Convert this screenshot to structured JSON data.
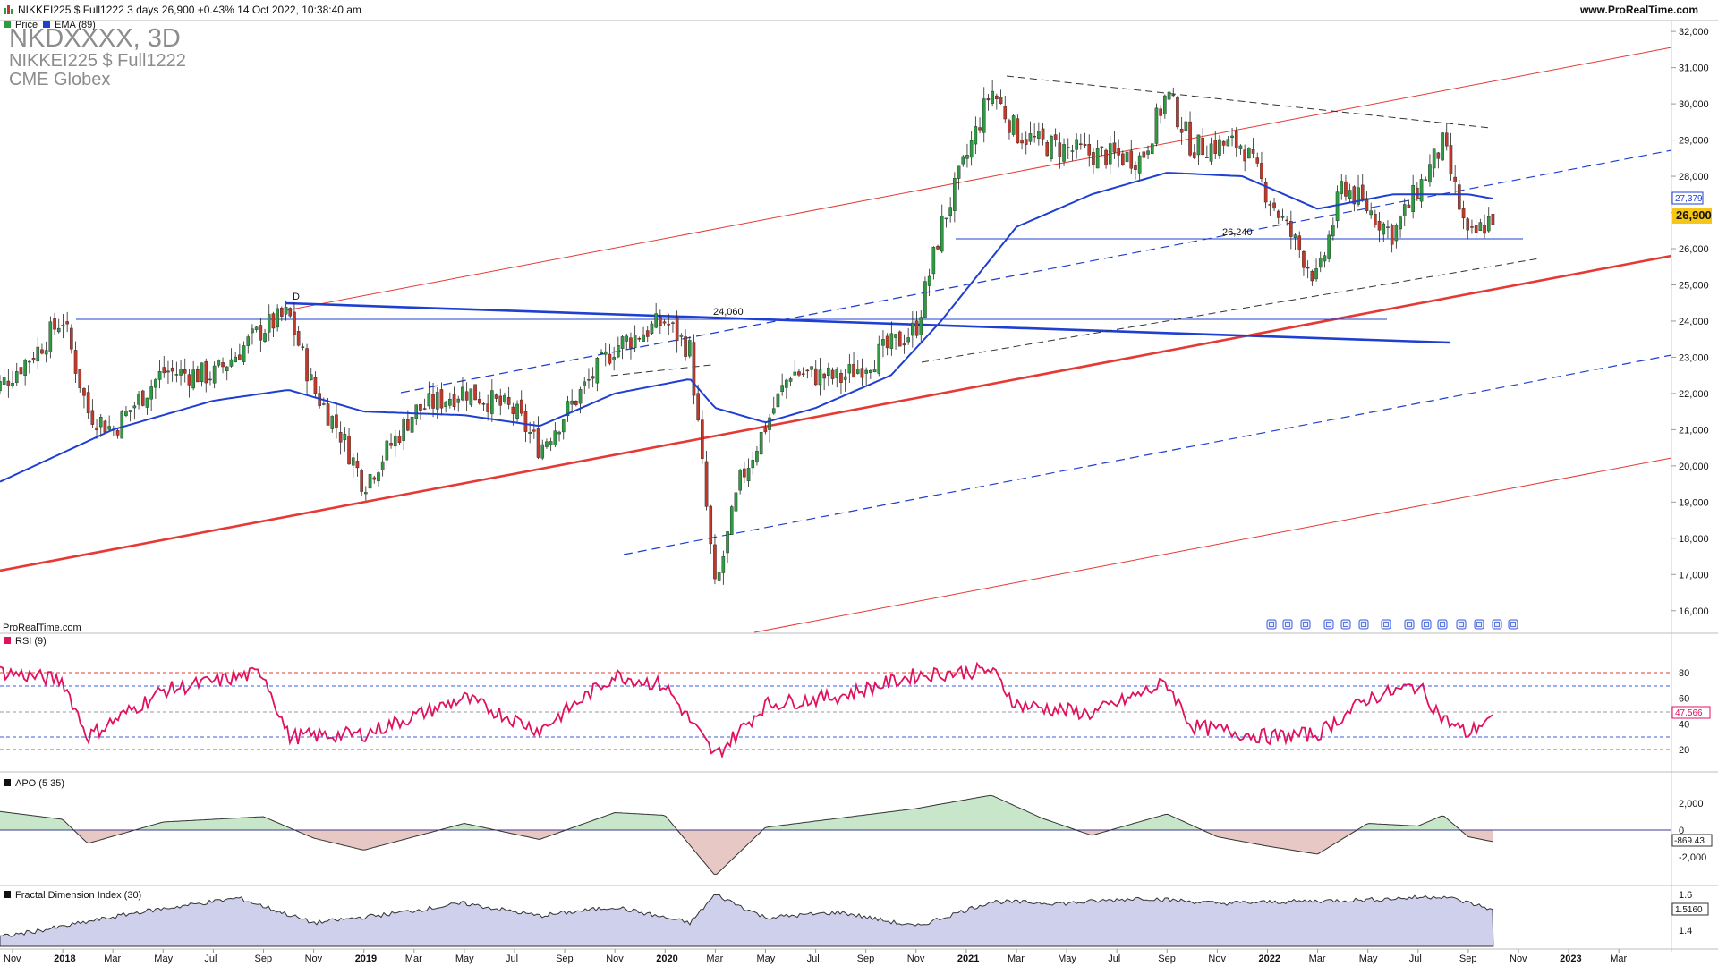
{
  "header": {
    "title": "NIKKEI225 $ Full1222 3 days 26,900 +0.43% 14 Oct 2022, 10:38:40 am",
    "site": "www.ProRealTime.com"
  },
  "main_chart": {
    "legend_price": "Price",
    "legend_ema": "EMA (89)",
    "watermark_line1": "NKDXXXX, 3D",
    "watermark_line2": "NIKKEI225 $ Full1222",
    "watermark_line3": "CME Globex",
    "credit": "ProRealTime.com",
    "label_d": "D",
    "label_24060": "24,060",
    "label_26240": "26,240",
    "ema_last_label": "27,379",
    "price_last_label": "26,900",
    "y_ticks": [
      "32,000",
      "31,000",
      "30,000",
      "29,000",
      "28,000",
      "27,000",
      "26,000",
      "25,000",
      "24,000",
      "23,000",
      "22,000",
      "21,000",
      "20,000",
      "19,000",
      "18,000",
      "17,000",
      "16,000"
    ]
  },
  "rsi_panel": {
    "label": "RSI (9)",
    "last_label": "47.566",
    "y_ticks": [
      "80",
      "60",
      "40",
      "20"
    ]
  },
  "apo_panel": {
    "label": "APO (5 35)",
    "last_label": "-869.43",
    "y_ticks": [
      "2,000",
      "0",
      "-2,000"
    ]
  },
  "fdi_panel": {
    "label": "Fractal Dimension Index (30)",
    "last_label": "1.5160",
    "y_ticks": [
      "1.6",
      "1.4"
    ]
  },
  "x_axis": {
    "labels": [
      "Nov",
      "2018",
      "Mar",
      "May",
      "Jul",
      "Sep",
      "Nov",
      "2019",
      "Mar",
      "May",
      "Jul",
      "Sep",
      "Nov",
      "2020",
      "Mar",
      "May",
      "Jul",
      "Sep",
      "Nov",
      "2021",
      "Mar",
      "May",
      "Jul",
      "Sep",
      "Nov",
      "2022",
      "Mar",
      "May",
      "Jul",
      "Sep",
      "Nov",
      "2023",
      "Mar"
    ]
  },
  "colors": {
    "candle_up": "#2e9b43",
    "candle_down": "#c0392b",
    "ema": "#1f3fd1",
    "rsi": "#e0115f",
    "channel_red": "#e53935",
    "apo_up_fill": "#c8e6c9",
    "apo_down_fill": "#e8c8c4",
    "fdi_fill": "#cfd0ec"
  },
  "chart_data": [
    {
      "type": "candlestick",
      "title": "NIKKEI225 $ Full1222 3 days",
      "ylim": [
        15500,
        32300
      ],
      "x": [
        "2017-10",
        "2017-12",
        "2018-01",
        "2018-02",
        "2018-03",
        "2018-05",
        "2018-07",
        "2018-09",
        "2018-10",
        "2018-11",
        "2018-12",
        "2019-01",
        "2019-03",
        "2019-05",
        "2019-07",
        "2019-08",
        "2019-11",
        "2020-01",
        "2020-02",
        "2020-03",
        "2020-04",
        "2020-06",
        "2020-08",
        "2020-10",
        "2020-11",
        "2020-12",
        "2021-02",
        "2021-03",
        "2021-04",
        "2021-06",
        "2021-08",
        "2021-09",
        "2021-10",
        "2021-12",
        "2022-01",
        "2022-03",
        "2022-04",
        "2022-06",
        "2022-08",
        "2022-09",
        "2022-10"
      ],
      "close": [
        21900,
        23200,
        24100,
        21500,
        21000,
        22600,
        22500,
        23800,
        24200,
        22100,
        21000,
        19500,
        21500,
        22100,
        21500,
        20500,
        23300,
        24000,
        23200,
        16500,
        19600,
        22600,
        22400,
        23300,
        23800,
        26600,
        30400,
        29200,
        28900,
        28600,
        28500,
        30300,
        28800,
        28900,
        27500,
        25100,
        27800,
        26400,
        28900,
        26200,
        26900
      ]
    },
    {
      "type": "line",
      "title": "EMA (89)",
      "x": [
        "2017-10",
        "2018-03",
        "2018-07",
        "2018-10",
        "2019-01",
        "2019-05",
        "2019-08",
        "2019-11",
        "2020-02",
        "2020-03",
        "2020-05",
        "2020-07",
        "2020-10",
        "2020-12",
        "2021-03",
        "2021-06",
        "2021-09",
        "2021-12",
        "2022-03",
        "2022-06",
        "2022-09",
        "2022-10"
      ],
      "values": [
        19400,
        21000,
        21800,
        22100,
        21500,
        21400,
        21100,
        22000,
        22400,
        21600,
        21200,
        21600,
        22500,
        24000,
        26600,
        27500,
        28100,
        28000,
        27100,
        27500,
        27500,
        27379
      ]
    },
    {
      "type": "line",
      "title": "RSI (9)",
      "ylim": [
        0,
        100
      ],
      "x": [
        "2017-10",
        "2018-01",
        "2018-02",
        "2018-05",
        "2018-09",
        "2018-10",
        "2019-01",
        "2019-05",
        "2019-08",
        "2019-11",
        "2020-01",
        "2020-03",
        "2020-05",
        "2020-08",
        "2020-11",
        "2021-02",
        "2021-03",
        "2021-06",
        "2021-09",
        "2021-10",
        "2022-01",
        "2022-03",
        "2022-05",
        "2022-07",
        "2022-08",
        "2022-09",
        "2022-10"
      ],
      "values": [
        82,
        74,
        30,
        66,
        80,
        30,
        32,
        60,
        35,
        78,
        70,
        15,
        55,
        62,
        78,
        82,
        55,
        48,
        72,
        38,
        30,
        32,
        60,
        70,
        44,
        32,
        47.566
      ]
    },
    {
      "type": "area",
      "title": "APO (5 35)",
      "x": [
        "2017-10",
        "2018-01",
        "2018-02",
        "2018-05",
        "2018-09",
        "2018-11",
        "2019-01",
        "2019-05",
        "2019-08",
        "2019-11",
        "2020-01",
        "2020-03",
        "2020-05",
        "2020-08",
        "2020-11",
        "2021-02",
        "2021-04",
        "2021-06",
        "2021-09",
        "2021-11",
        "2022-01",
        "2022-03",
        "2022-05",
        "2022-07",
        "2022-08",
        "2022-09",
        "2022-10"
      ],
      "values": [
        1500,
        800,
        -1000,
        600,
        1000,
        -600,
        -1500,
        500,
        -700,
        1300,
        1100,
        -3400,
        200,
        900,
        1600,
        2600,
        900,
        -400,
        1200,
        -500,
        -1200,
        -1800,
        500,
        300,
        1100,
        -500,
        -869.43
      ]
    },
    {
      "type": "area",
      "title": "Fractal Dimension Index (30)",
      "x": [
        "2017-10",
        "2018-01",
        "2018-04",
        "2018-08",
        "2018-11",
        "2019-02",
        "2019-05",
        "2019-08",
        "2019-11",
        "2020-02",
        "2020-03",
        "2020-05",
        "2020-08",
        "2020-11",
        "2021-02",
        "2021-05",
        "2021-08",
        "2021-11",
        "2022-02",
        "2022-05",
        "2022-08",
        "2022-10"
      ],
      "values": [
        1.35,
        1.42,
        1.5,
        1.58,
        1.44,
        1.49,
        1.55,
        1.48,
        1.53,
        1.44,
        1.6,
        1.47,
        1.5,
        1.42,
        1.56,
        1.55,
        1.58,
        1.55,
        1.56,
        1.57,
        1.59,
        1.516
      ]
    }
  ]
}
